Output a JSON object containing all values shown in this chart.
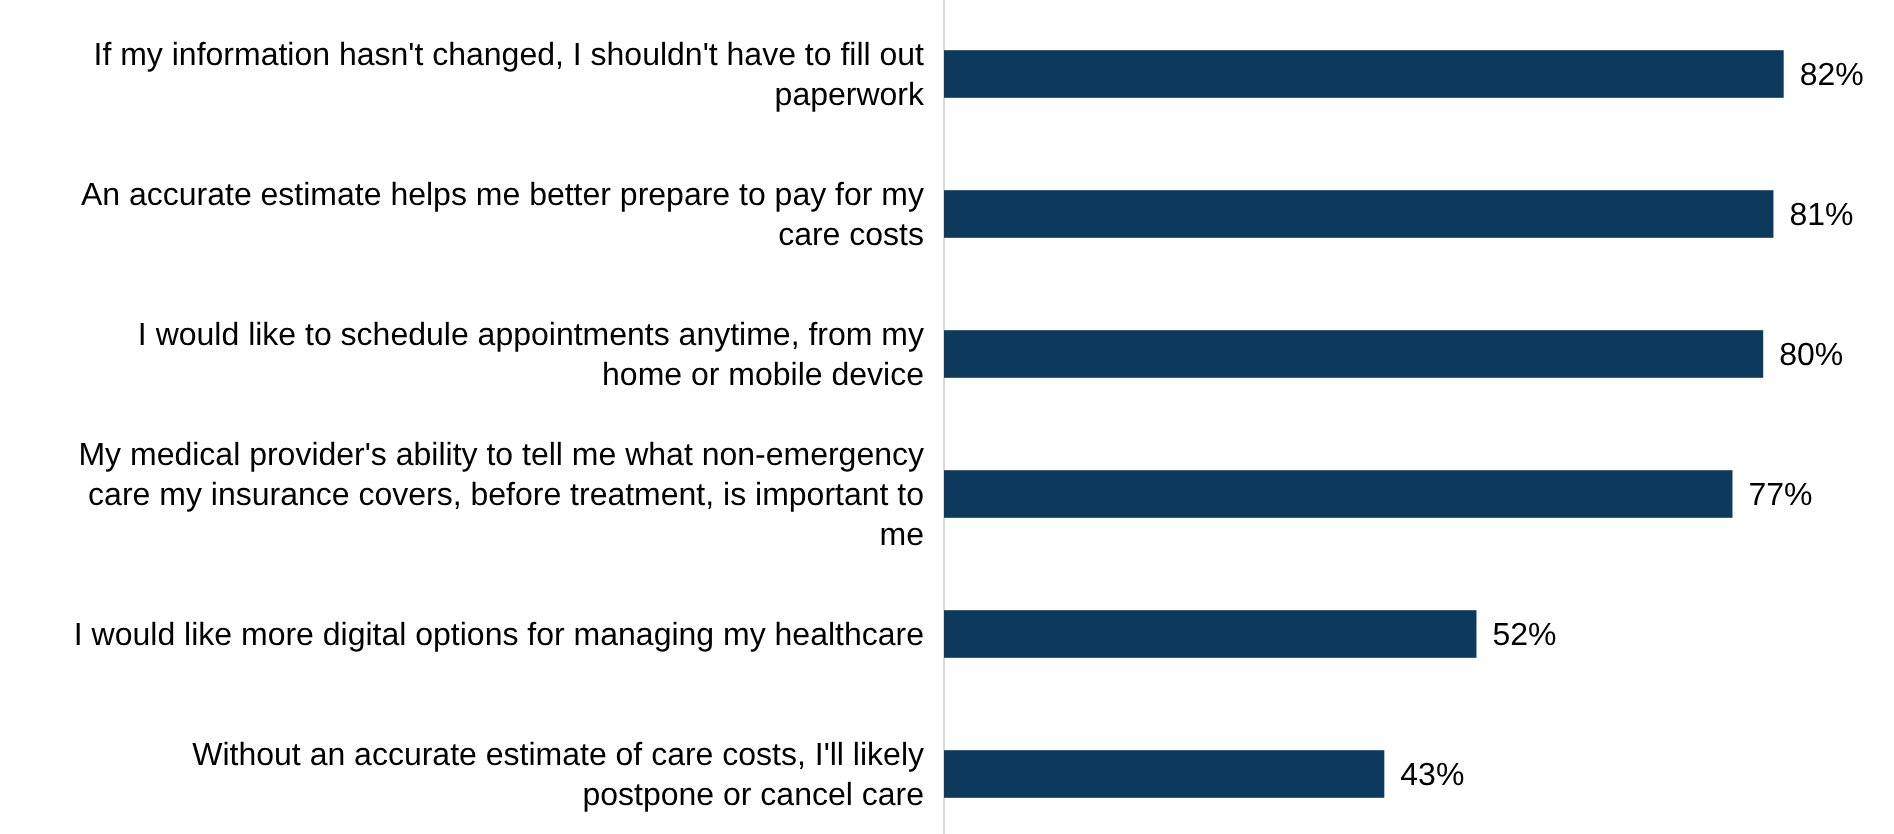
{
  "chart_data": {
    "type": "bar",
    "orientation": "horizontal",
    "categories": [
      "If my information hasn't changed, I shouldn't have to fill out paperwork",
      "An accurate estimate helps me better prepare to pay for my care costs",
      "I would like to schedule appointments anytime, from my home or mobile device",
      "My medical provider's ability to tell me what non-emergency care my insurance covers, before treatment, is important to me",
      "I would like more digital options for managing my healthcare",
      "Without an accurate estimate of care costs, I'll likely postpone or cancel care"
    ],
    "values": [
      82,
      81,
      80,
      77,
      52,
      43
    ],
    "value_labels": [
      "82%",
      "81%",
      "80%",
      "77%",
      "52%",
      "43%"
    ],
    "color": "#0d3a5c"
  }
}
